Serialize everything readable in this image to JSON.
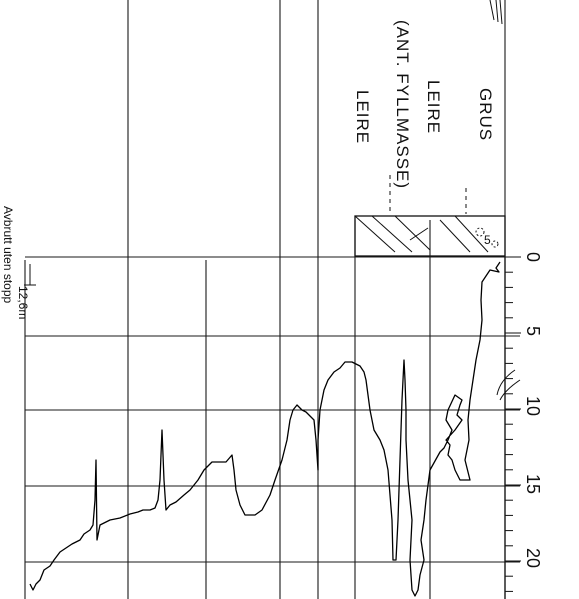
{
  "soil_layers": [
    {
      "label": "GRUS"
    },
    {
      "label": "LEIRE"
    },
    {
      "label": "(ANT. FYLLMASSE)"
    },
    {
      "label": "LEIRE"
    }
  ],
  "depth_axis": {
    "ticks": [
      "0",
      "5",
      "10",
      "15",
      "20"
    ],
    "unit_note": "12,6m"
  },
  "termination_note": "Avbrutt uten stopp",
  "colors": {
    "ink": "#111111",
    "paper": "#ffffff"
  }
}
